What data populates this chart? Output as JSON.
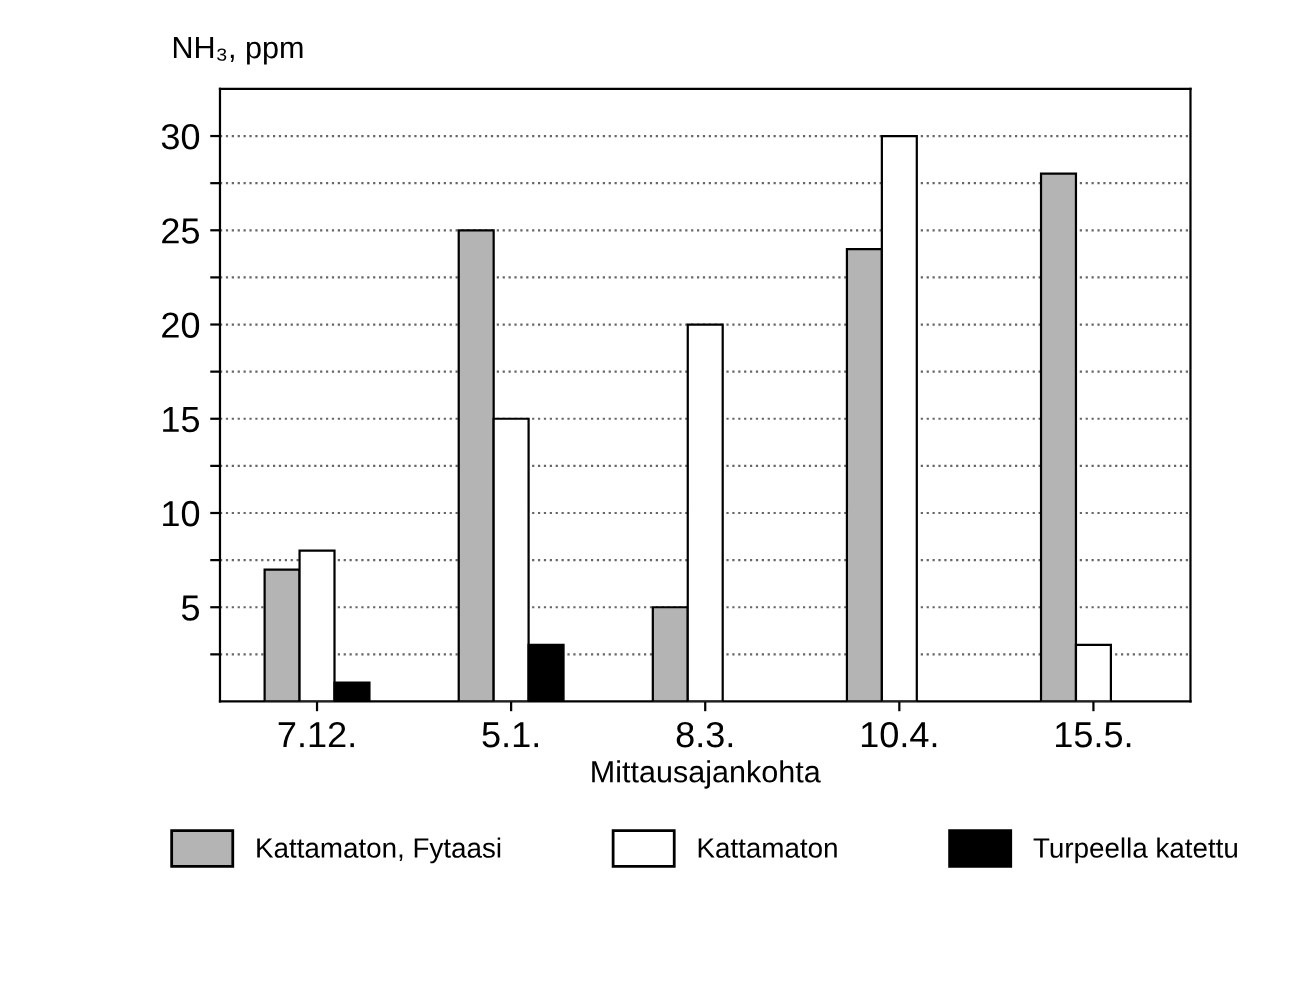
{
  "chart_data": {
    "type": "bar",
    "ylabel": "NH₃, ppm",
    "xlabel": "Mittausajankohta",
    "categories": [
      "7.12.",
      "5.1.",
      "8.3.",
      "10.4.",
      "15.5."
    ],
    "series": [
      {
        "name": "Kattamaton, Fytaasi",
        "color": "#b4b4b4",
        "values": [
          7,
          25,
          5,
          24,
          28
        ]
      },
      {
        "name": "Kattamaton",
        "color": "#ffffff",
        "values": [
          8,
          15,
          20,
          30,
          3
        ]
      },
      {
        "name": "Turpeella katettu",
        "color": "#000000",
        "values": [
          1,
          3,
          null,
          null,
          null
        ]
      }
    ],
    "ylim": [
      0,
      32.5
    ],
    "yticks": [
      {
        "value": 2.5,
        "label": null
      },
      5,
      {
        "value": 7.5,
        "label": null
      },
      10,
      {
        "value": 12.5,
        "label": null
      },
      15,
      {
        "value": 17.5,
        "label": null
      },
      20,
      {
        "value": 22.5,
        "label": null
      },
      25,
      {
        "value": 27.5,
        "label": null
      },
      30
    ],
    "grid": "y",
    "legend": "bottom"
  }
}
